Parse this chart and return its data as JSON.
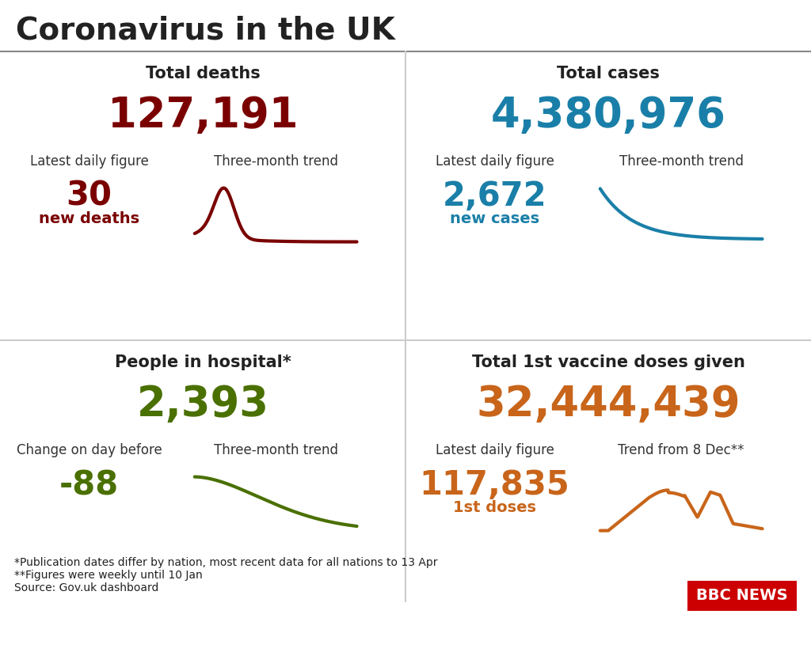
{
  "title": "Coronavirus in the UK",
  "bg_color": "#ffffff",
  "title_color": "#222222",
  "panels": [
    {
      "heading": "Total deaths",
      "heading_color": "#222222",
      "big_number": "127,191",
      "big_number_color": "#7a0000",
      "sub_label1": "Latest daily figure",
      "sub_label2": "Three-month trend",
      "sub_number": "30",
      "sub_number_color": "#7a0000",
      "sub_text": "new deaths",
      "sub_text_color": "#7a0000",
      "trend_color": "#7a0000",
      "trend_type": "down_hump",
      "col": 0,
      "row": 1
    },
    {
      "heading": "Total cases",
      "heading_color": "#222222",
      "big_number": "4,380,976",
      "big_number_color": "#1a7fa8",
      "sub_label1": "Latest daily figure",
      "sub_label2": "Three-month trend",
      "sub_number": "2,672",
      "sub_number_color": "#1a7fa8",
      "sub_text": "new cases",
      "sub_text_color": "#1a7fa8",
      "trend_color": "#1a7fa8",
      "trend_type": "down_flat",
      "col": 1,
      "row": 1
    },
    {
      "heading": "People in hospital*",
      "heading_color": "#222222",
      "big_number": "2,393",
      "big_number_color": "#4a7000",
      "sub_label1": "Change on day before",
      "sub_label2": "Three-month trend",
      "sub_number": "-88",
      "sub_number_color": "#4a7000",
      "sub_text": "",
      "sub_text_color": "#4a7000",
      "trend_color": "#4a7000",
      "trend_type": "down_steep",
      "col": 0,
      "row": 0
    },
    {
      "heading": "Total 1st vaccine doses given",
      "heading_color": "#222222",
      "big_number": "32,444,439",
      "big_number_color": "#c8651a",
      "sub_label1": "Latest daily figure",
      "sub_label2": "Trend from 8 Dec**",
      "sub_number": "117,835",
      "sub_number_color": "#c8651a",
      "sub_text": "1st doses",
      "sub_text_color": "#c8651a",
      "trend_color": "#c8651a",
      "trend_type": "up_down",
      "col": 1,
      "row": 0
    }
  ],
  "footnote1": "*Publication dates differ by nation, most recent data for all nations to 13 Apr",
  "footnote2": "**Figures were weekly until 10 Jan",
  "footnote3": "Source: Gov.uk dashboard",
  "footnote_color": "#222222",
  "bbc_box_color": "#cc0000"
}
